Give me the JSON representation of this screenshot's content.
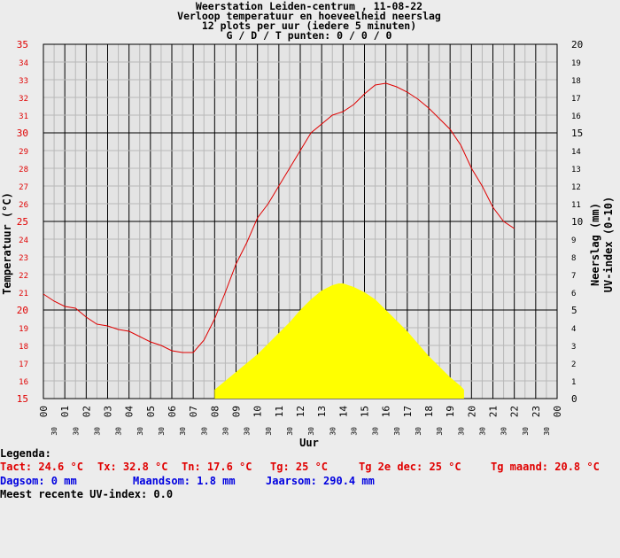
{
  "header": {
    "line1": "Weerstation Leiden-centrum , 11-08-22",
    "line2": "Verloop temperatuur en hoeveelheid neerslag",
    "line3": "12 plots per uur (iedere 5 minuten)",
    "line4": "G / D / T punten: 0 / 0 / 0"
  },
  "colors": {
    "temperature": "#e00000",
    "uv": "#ffff00",
    "grid": "#000000",
    "background": "#ececec"
  },
  "chart_data": {
    "type": "line",
    "title": "Weerstation Leiden-centrum , 11-08-22",
    "xlabel": "Uur",
    "ylabel_left": "Temperatuur (°C)",
    "ylabel_right_1": "Neerslag (mm)",
    "ylabel_right_2": "UV-index (0-10)",
    "xlim": [
      0,
      24
    ],
    "ylim_left": [
      15,
      35
    ],
    "ylim_right": [
      0,
      20
    ],
    "x_hour_ticks": [
      "00",
      "01",
      "02",
      "03",
      "04",
      "05",
      "06",
      "07",
      "08",
      "09",
      "10",
      "11",
      "12",
      "13",
      "14",
      "15",
      "16",
      "17",
      "18",
      "19",
      "20",
      "21",
      "22",
      "23",
      "00"
    ],
    "x_half_label": "30",
    "y_left_ticks": [
      15,
      16,
      17,
      18,
      19,
      20,
      21,
      22,
      23,
      24,
      25,
      26,
      27,
      28,
      29,
      30,
      31,
      32,
      33,
      34,
      35
    ],
    "y_right_ticks": [
      0,
      1,
      2,
      3,
      4,
      5,
      6,
      7,
      8,
      9,
      10,
      11,
      12,
      13,
      14,
      15,
      16,
      17,
      18,
      19,
      20
    ],
    "grid": true,
    "series": [
      {
        "kind": "temperature",
        "x": [
          0,
          0.5,
          1,
          1.5,
          2,
          2.5,
          3,
          3.5,
          4,
          4.5,
          5,
          5.5,
          6,
          6.5,
          7,
          7.5,
          8,
          8.5,
          9,
          9.5,
          10,
          10.5,
          11,
          11.5,
          12,
          12.5,
          13,
          13.5,
          14,
          14.5,
          15,
          15.5,
          16,
          16.5,
          17,
          17.5,
          18,
          18.5,
          19,
          19.5,
          20,
          20.5,
          21,
          21.5,
          22
        ],
        "y": [
          20.9,
          20.5,
          20.2,
          20.1,
          19.6,
          19.2,
          19.1,
          18.9,
          18.8,
          18.5,
          18.2,
          18.0,
          17.7,
          17.6,
          17.6,
          18.3,
          19.5,
          21.0,
          22.6,
          23.8,
          25.2,
          26.0,
          27.0,
          28.0,
          29.0,
          30.0,
          30.5,
          31.0,
          31.2,
          31.6,
          32.2,
          32.7,
          32.8,
          32.6,
          32.3,
          31.9,
          31.4,
          30.8,
          30.2,
          29.3,
          28.0,
          27.0,
          25.8,
          25.0,
          24.6
        ]
      },
      {
        "kind": "uv-area",
        "x": [
          8,
          8.5,
          9,
          9.5,
          10,
          10.5,
          11,
          11.5,
          12,
          12.5,
          13,
          13.5,
          13.8,
          14,
          14.5,
          15,
          15.5,
          16,
          16.5,
          17,
          17.5,
          18,
          18.5,
          19,
          19.5,
          19.65
        ],
        "y": [
          0.5,
          1.0,
          1.5,
          2.0,
          2.5,
          3.1,
          3.7,
          4.3,
          5.0,
          5.6,
          6.1,
          6.4,
          6.5,
          6.5,
          6.3,
          6.0,
          5.6,
          5.0,
          4.4,
          3.8,
          3.1,
          2.4,
          1.8,
          1.2,
          0.7,
          0.5
        ]
      }
    ]
  },
  "legend": {
    "title": "Legenda:",
    "tact": "Tact: 24.6 °C",
    "tx": "Tx: 32.8 °C",
    "tn": "Tn: 17.6 °C",
    "tg": "Tg: 25 °C",
    "tg2edec": "Tg 2e dec: 25 °C",
    "tgmaand": "Tg maand: 20.8 °C",
    "dagsom": "Dagsom: 0 mm",
    "maandsom": "Maandsom: 1.8 mm",
    "jaarsom": "Jaarsom: 290.4 mm",
    "uv_recent": "Meest recente UV-index: 0.0"
  }
}
